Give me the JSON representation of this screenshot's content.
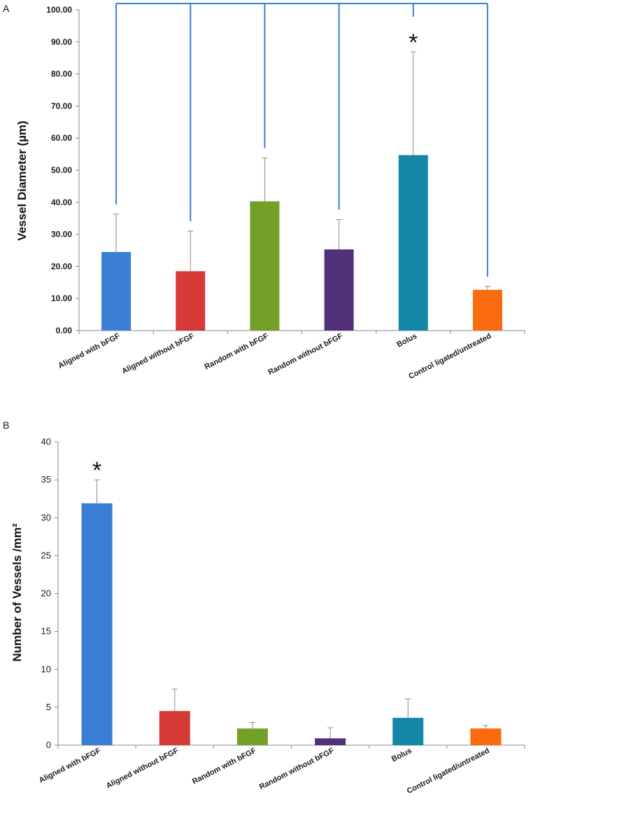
{
  "chart_data": [
    {
      "type": "bar",
      "panel_label": "A",
      "title": "",
      "xlabel": "",
      "ylabel": "Vessel Diameter (µm)",
      "ylim": [
        0,
        100
      ],
      "yticks": [
        "0.00",
        "10.00",
        "20.00",
        "30.00",
        "40.00",
        "50.00",
        "60.00",
        "70.00",
        "80.00",
        "90.00",
        "100.00"
      ],
      "categories": [
        "Aligned with bFGF",
        "Aligned without bFGF",
        "Random with bFGF",
        "Random without bFGF",
        "Bolus",
        "Control ligated/untreated"
      ],
      "values": [
        24.5,
        18.5,
        40.3,
        25.3,
        54.7,
        12.7
      ],
      "error_upper": [
        36.3,
        31.0,
        53.8,
        34.6,
        86.9,
        13.7
      ],
      "colors": [
        "#3a7fd5",
        "#d63a37",
        "#74a02a",
        "#53307a",
        "#1388a8",
        "#fb6a0e"
      ],
      "significance": {
        "category": "Bolus",
        "marker": "*"
      },
      "comparison_bracket_color": "#3a7fd5"
    },
    {
      "type": "bar",
      "panel_label": "B",
      "title": "",
      "xlabel": "",
      "ylabel": "Number of Vessels /mm²",
      "ylim": [
        0,
        40
      ],
      "yticks": [
        "0",
        "5",
        "10",
        "15",
        "20",
        "25",
        "30",
        "35",
        "40"
      ],
      "categories": [
        "Aligned with bFGF",
        "Aligned without bFGF",
        "Random with bFGF",
        "Random without bFGF",
        "Bolus",
        "Control ligated/untreated"
      ],
      "values": [
        31.9,
        4.5,
        2.2,
        0.9,
        3.6,
        2.2
      ],
      "error_upper": [
        35.0,
        7.4,
        3.0,
        2.3,
        6.1,
        2.6
      ],
      "colors": [
        "#3a7fd5",
        "#d63a37",
        "#74a02a",
        "#53307a",
        "#1388a8",
        "#fb6a0e"
      ],
      "significance": {
        "category": "Aligned with bFGF",
        "marker": "*"
      }
    }
  ]
}
